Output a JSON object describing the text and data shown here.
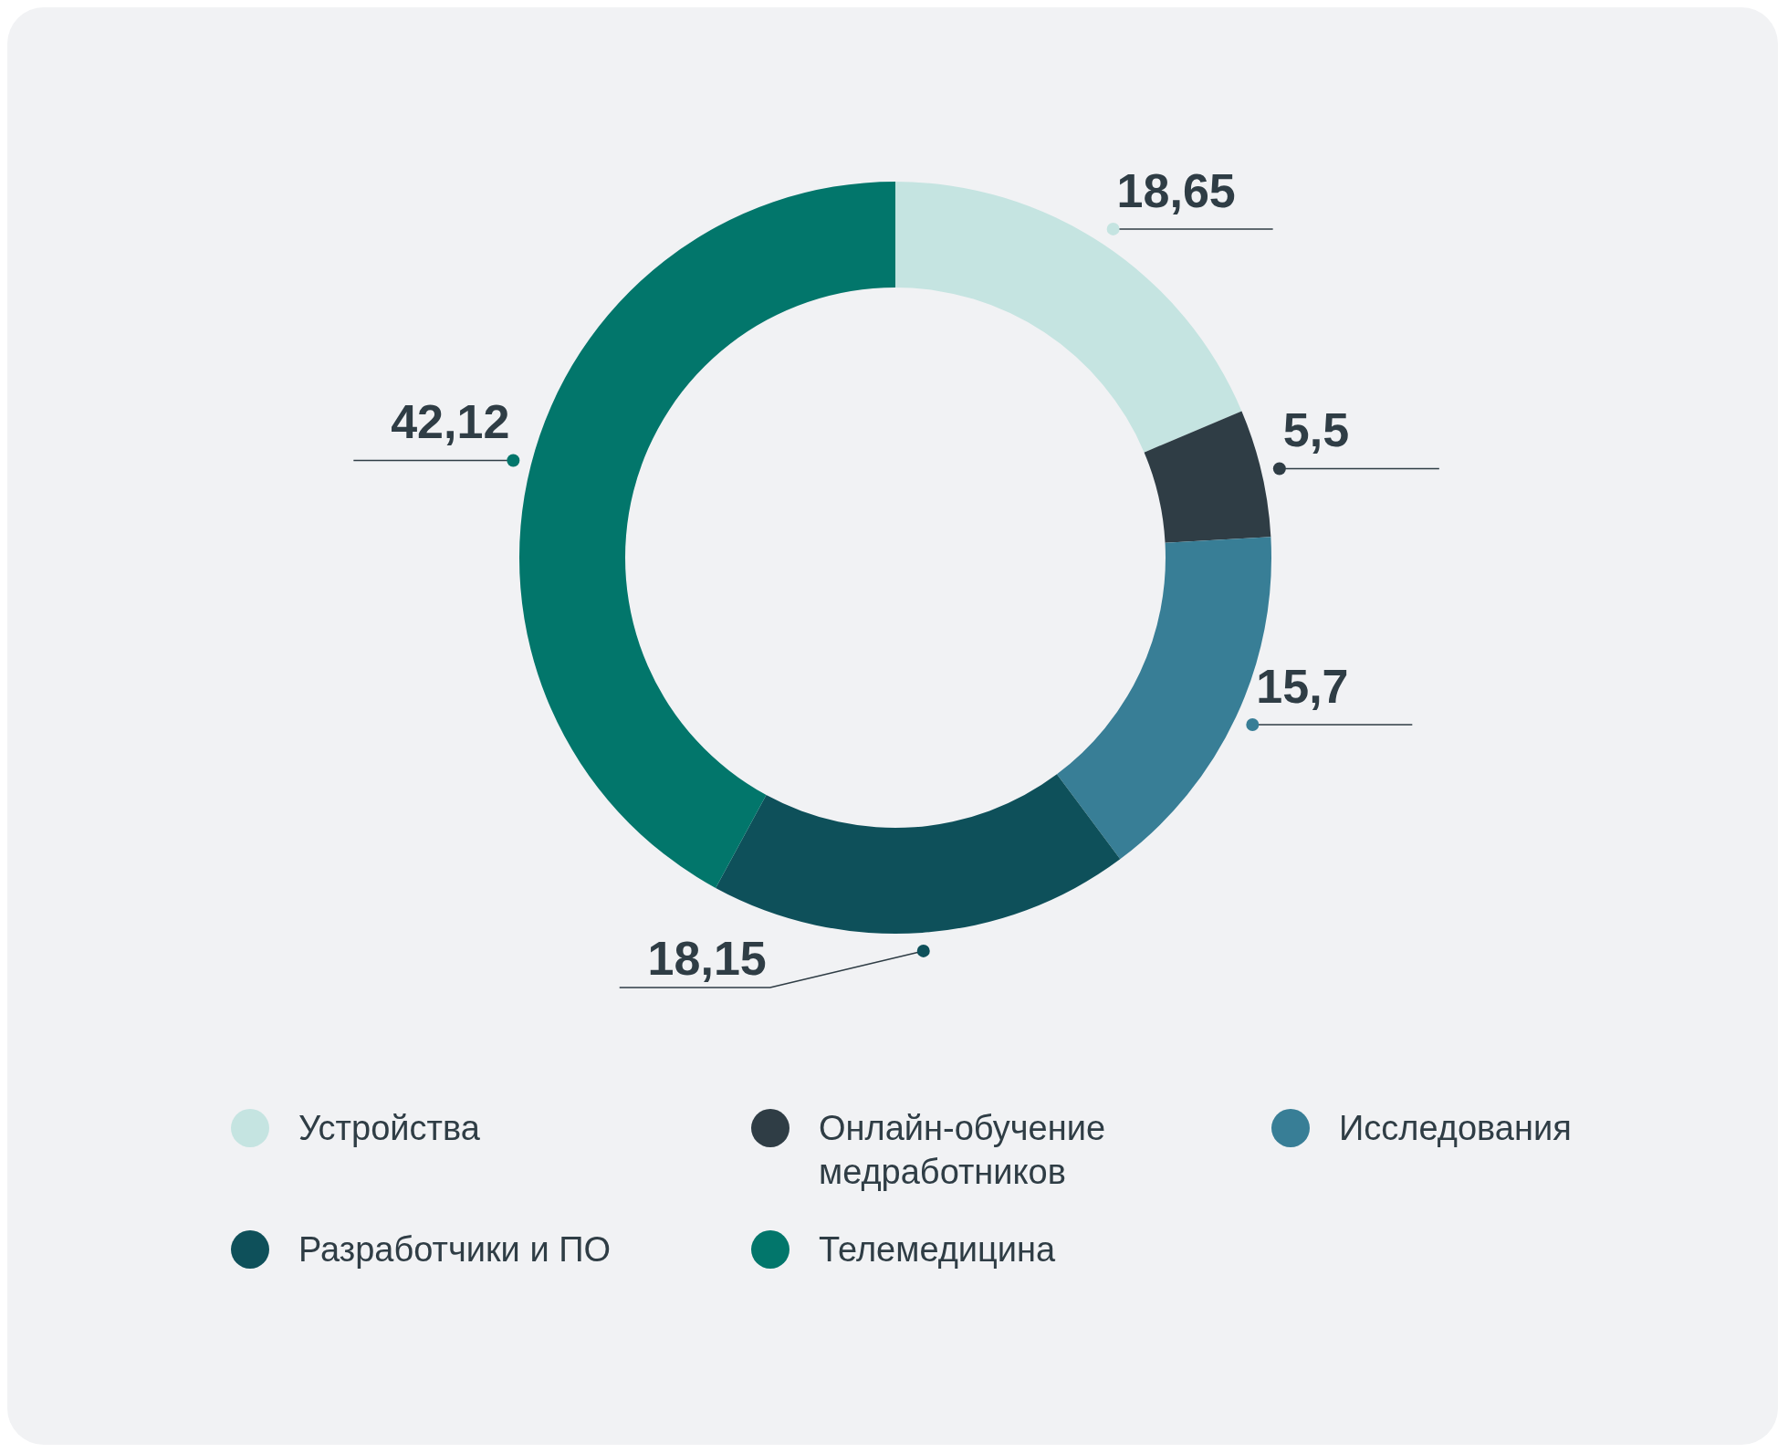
{
  "chart_data": {
    "type": "donut",
    "categories": [
      "Устройства",
      "Онлайн-обучение медработников",
      "Исследования",
      "Разработчики и ПО",
      "Телемедицина"
    ],
    "values": [
      18.65,
      5.5,
      15.7,
      18.15,
      42.12
    ],
    "value_labels": [
      "18,65",
      "5,5",
      "15,7",
      "18,15",
      "42,12"
    ],
    "colors": [
      "#c5e4e1",
      "#2f3d45",
      "#387e96",
      "#0e505a",
      "#02766b"
    ],
    "legend": "bottom"
  }
}
